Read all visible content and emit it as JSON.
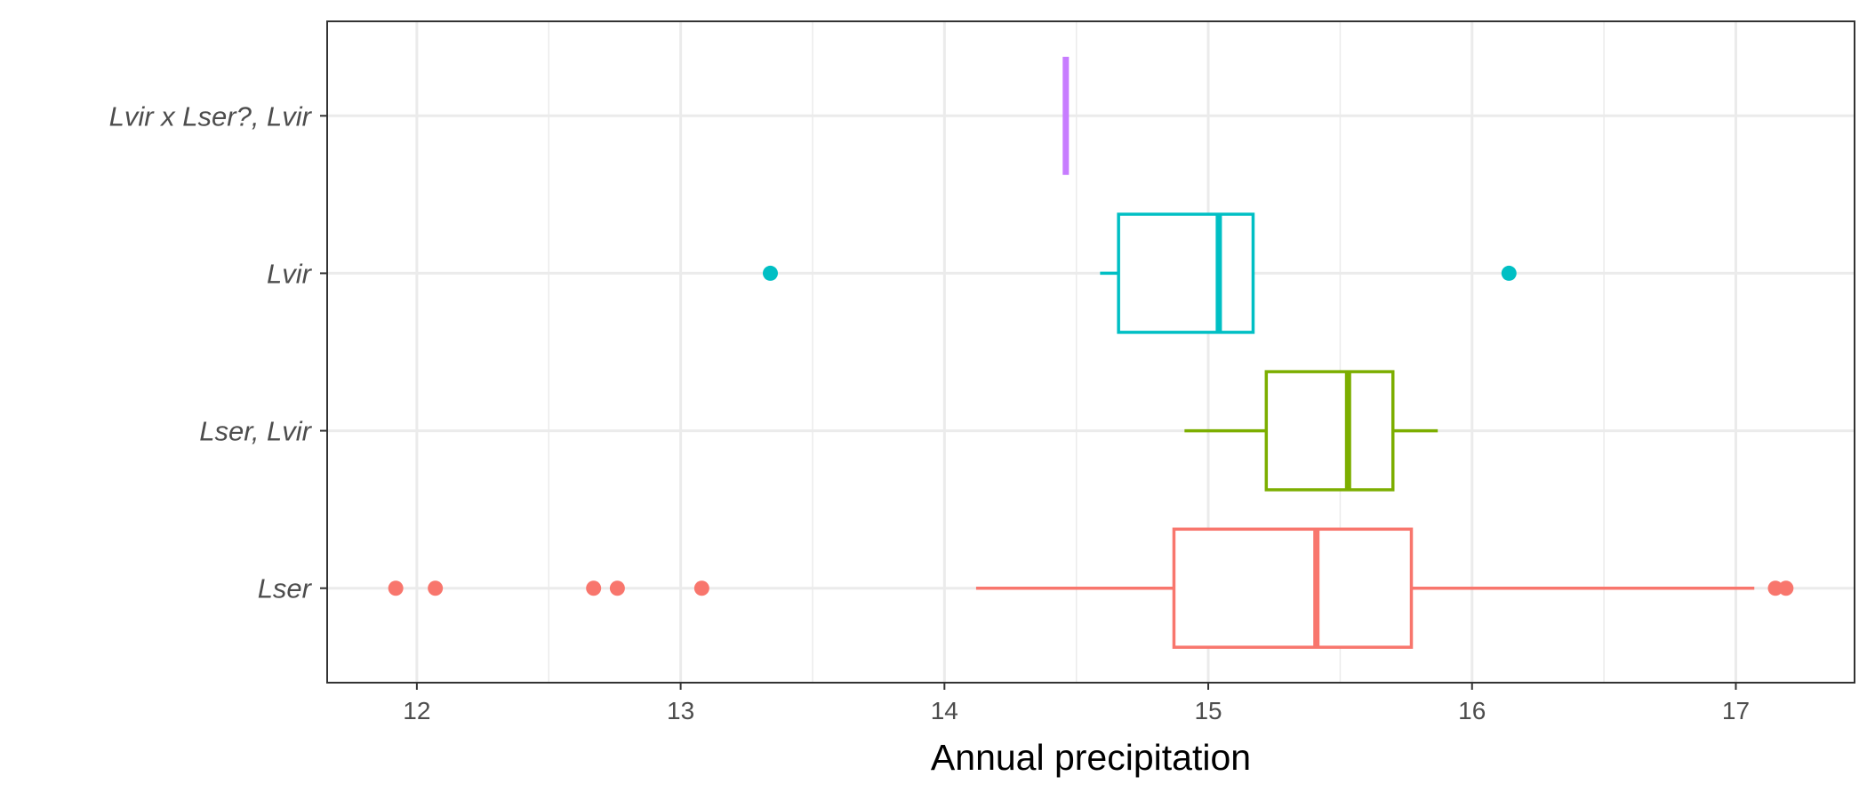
{
  "chart_data": {
    "type": "boxplot",
    "orientation": "horizontal",
    "title": "",
    "xlabel": "Annual precipitation",
    "ylabel": "",
    "xlim": [
      11.66,
      17.45
    ],
    "x_ticks": [
      12,
      13,
      14,
      15,
      16,
      17
    ],
    "grid": true,
    "legend": "none",
    "categories": [
      "Lser",
      "Lser, Lvir",
      "Lvir",
      "Lvir x Lser?, Lvir"
    ],
    "series": [
      {
        "category": "Lser",
        "color": "#F8766D",
        "whisker_low": 14.12,
        "q1": 14.87,
        "median": 15.41,
        "q3": 15.77,
        "whisker_high": 17.07,
        "outliers": [
          11.92,
          12.07,
          12.67,
          12.76,
          13.08,
          17.15,
          17.19
        ]
      },
      {
        "category": "Lser, Lvir",
        "color": "#7CAE00",
        "whisker_low": 14.91,
        "q1": 15.22,
        "median": 15.53,
        "q3": 15.7,
        "whisker_high": 15.87,
        "outliers": []
      },
      {
        "category": "Lvir",
        "color": "#00BFC4",
        "whisker_low": 14.59,
        "q1": 14.66,
        "median": 15.04,
        "q3": 15.17,
        "whisker_high": 15.17,
        "outliers": [
          13.34,
          16.14
        ]
      },
      {
        "category": "Lvir x Lser?, Lvir",
        "color": "#C77CFF",
        "whisker_low": 14.46,
        "q1": 14.46,
        "median": 14.46,
        "q3": 14.46,
        "whisker_high": 14.46,
        "outliers": []
      }
    ]
  }
}
